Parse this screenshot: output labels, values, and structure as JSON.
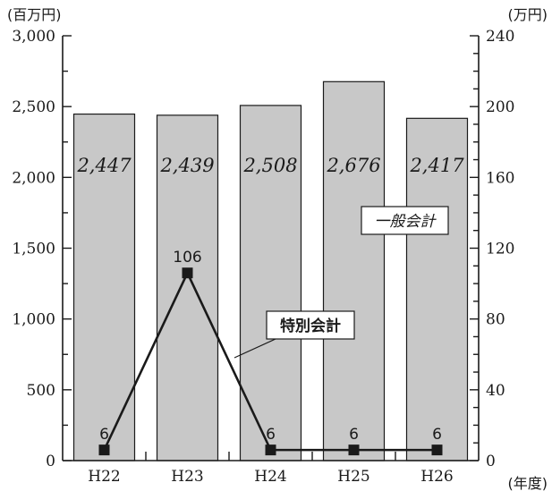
{
  "chart_data": {
    "type": "bar+line",
    "categories": [
      "H22",
      "H23",
      "H24",
      "H25",
      "H26"
    ],
    "x_unit": "(年度)",
    "left_axis": {
      "unit": "(百万円)",
      "ticks": [
        "0",
        "500",
        "1,000",
        "1,500",
        "2,000",
        "2,500",
        "3,000"
      ],
      "tick_values": [
        0,
        500,
        1000,
        1500,
        2000,
        2500,
        3000
      ],
      "range": [
        0,
        3000
      ]
    },
    "right_axis": {
      "unit": "(万円)",
      "ticks": [
        "0",
        "40",
        "80",
        "120",
        "160",
        "200",
        "240"
      ],
      "tick_values": [
        0,
        40,
        80,
        120,
        160,
        200,
        240
      ],
      "range": [
        0,
        240
      ]
    },
    "series": [
      {
        "name": "一般会計",
        "kind": "bar",
        "axis": "left",
        "color": "#c8c8c8",
        "values": [
          2447,
          2439,
          2508,
          2676,
          2417
        ],
        "labels": [
          "2,447",
          "2,439",
          "2,508",
          "2,676",
          "2,417"
        ]
      },
      {
        "name": "特別会計",
        "kind": "line",
        "axis": "right",
        "color": "#1a1a1a",
        "values": [
          6,
          106,
          6,
          6,
          6
        ],
        "labels": [
          "6",
          "106",
          "6",
          "6",
          "6"
        ]
      }
    ]
  }
}
